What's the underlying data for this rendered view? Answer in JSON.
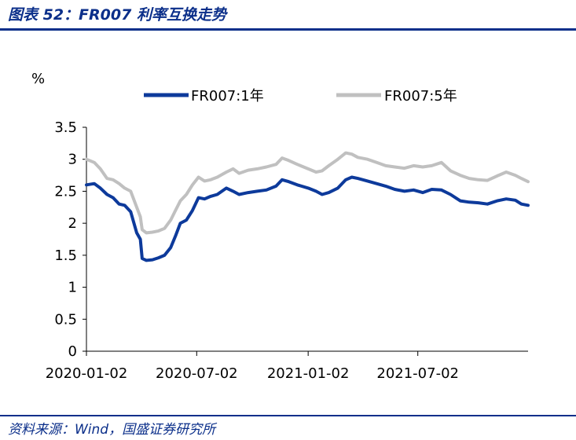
{
  "figure": {
    "title": "图表 52：FR007 利率互换走势",
    "source": "资料来源：Wind，国盛证券研究所"
  },
  "colors": {
    "accent": "#0b2f8a",
    "series_1y": "#0d3a9b",
    "series_5y": "#c0c0c0"
  },
  "chart_data": {
    "type": "line",
    "unit_label": "%",
    "ylim": [
      0,
      3.5
    ],
    "yticks": [
      "0",
      "0.5",
      "1",
      "1.5",
      "2",
      "2.5",
      "3",
      "3.5"
    ],
    "xlim": [
      "2020-01-02",
      "2021-12-31"
    ],
    "xticks": [
      "2020-01-02",
      "2020-07-02",
      "2021-01-02",
      "2021-07-02"
    ],
    "grid": false,
    "legend_position": "top",
    "series": [
      {
        "name": "FR007:1年",
        "color": "#0d3a9b",
        "points": [
          [
            "2020-01-02",
            2.6
          ],
          [
            "2020-01-15",
            2.62
          ],
          [
            "2020-01-25",
            2.55
          ],
          [
            "2020-02-05",
            2.45
          ],
          [
            "2020-02-15",
            2.4
          ],
          [
            "2020-02-25",
            2.3
          ],
          [
            "2020-03-05",
            2.28
          ],
          [
            "2020-03-15",
            2.18
          ],
          [
            "2020-03-25",
            1.85
          ],
          [
            "2020-03-31",
            1.75
          ],
          [
            "2020-04-03",
            1.45
          ],
          [
            "2020-04-10",
            1.42
          ],
          [
            "2020-04-20",
            1.43
          ],
          [
            "2020-04-30",
            1.46
          ],
          [
            "2020-05-10",
            1.5
          ],
          [
            "2020-05-20",
            1.62
          ],
          [
            "2020-05-28",
            1.8
          ],
          [
            "2020-06-05",
            2.0
          ],
          [
            "2020-06-15",
            2.05
          ],
          [
            "2020-06-25",
            2.2
          ],
          [
            "2020-07-05",
            2.4
          ],
          [
            "2020-07-15",
            2.38
          ],
          [
            "2020-07-25",
            2.42
          ],
          [
            "2020-08-05",
            2.45
          ],
          [
            "2020-08-20",
            2.55
          ],
          [
            "2020-08-31",
            2.5
          ],
          [
            "2020-09-10",
            2.45
          ],
          [
            "2020-09-25",
            2.48
          ],
          [
            "2020-10-10",
            2.5
          ],
          [
            "2020-10-25",
            2.52
          ],
          [
            "2020-11-10",
            2.58
          ],
          [
            "2020-11-20",
            2.68
          ],
          [
            "2020-12-01",
            2.65
          ],
          [
            "2020-12-15",
            2.6
          ],
          [
            "2021-01-02",
            2.55
          ],
          [
            "2021-01-15",
            2.5
          ],
          [
            "2021-01-25",
            2.45
          ],
          [
            "2021-02-05",
            2.48
          ],
          [
            "2021-02-20",
            2.55
          ],
          [
            "2021-03-05",
            2.68
          ],
          [
            "2021-03-15",
            2.72
          ],
          [
            "2021-03-25",
            2.7
          ],
          [
            "2021-04-10",
            2.66
          ],
          [
            "2021-04-25",
            2.62
          ],
          [
            "2021-05-10",
            2.58
          ],
          [
            "2021-05-25",
            2.53
          ],
          [
            "2021-06-10",
            2.5
          ],
          [
            "2021-06-25",
            2.52
          ],
          [
            "2021-07-10",
            2.48
          ],
          [
            "2021-07-25",
            2.53
          ],
          [
            "2021-08-10",
            2.52
          ],
          [
            "2021-08-25",
            2.45
          ],
          [
            "2021-09-10",
            2.35
          ],
          [
            "2021-09-25",
            2.33
          ],
          [
            "2021-10-10",
            2.32
          ],
          [
            "2021-10-25",
            2.3
          ],
          [
            "2021-11-10",
            2.35
          ],
          [
            "2021-11-25",
            2.38
          ],
          [
            "2021-12-10",
            2.36
          ],
          [
            "2021-12-20",
            2.3
          ],
          [
            "2021-12-31",
            2.28
          ]
        ]
      },
      {
        "name": "FR007:5年",
        "color": "#c0c0c0",
        "points": [
          [
            "2020-01-02",
            3.0
          ],
          [
            "2020-01-15",
            2.95
          ],
          [
            "2020-01-25",
            2.85
          ],
          [
            "2020-02-05",
            2.7
          ],
          [
            "2020-02-15",
            2.68
          ],
          [
            "2020-02-25",
            2.62
          ],
          [
            "2020-03-05",
            2.55
          ],
          [
            "2020-03-15",
            2.5
          ],
          [
            "2020-03-25",
            2.25
          ],
          [
            "2020-03-31",
            2.1
          ],
          [
            "2020-04-03",
            1.9
          ],
          [
            "2020-04-10",
            1.85
          ],
          [
            "2020-04-20",
            1.86
          ],
          [
            "2020-04-30",
            1.88
          ],
          [
            "2020-05-10",
            1.92
          ],
          [
            "2020-05-20",
            2.05
          ],
          [
            "2020-05-28",
            2.2
          ],
          [
            "2020-06-05",
            2.35
          ],
          [
            "2020-06-15",
            2.45
          ],
          [
            "2020-06-25",
            2.6
          ],
          [
            "2020-07-05",
            2.72
          ],
          [
            "2020-07-15",
            2.66
          ],
          [
            "2020-07-25",
            2.68
          ],
          [
            "2020-08-05",
            2.72
          ],
          [
            "2020-08-20",
            2.8
          ],
          [
            "2020-08-31",
            2.85
          ],
          [
            "2020-09-10",
            2.78
          ],
          [
            "2020-09-25",
            2.83
          ],
          [
            "2020-10-10",
            2.85
          ],
          [
            "2020-10-25",
            2.88
          ],
          [
            "2020-11-10",
            2.92
          ],
          [
            "2020-11-20",
            3.02
          ],
          [
            "2020-12-01",
            2.98
          ],
          [
            "2020-12-15",
            2.92
          ],
          [
            "2021-01-02",
            2.85
          ],
          [
            "2021-01-15",
            2.8
          ],
          [
            "2021-01-25",
            2.82
          ],
          [
            "2021-02-05",
            2.9
          ],
          [
            "2021-02-20",
            3.0
          ],
          [
            "2021-03-05",
            3.1
          ],
          [
            "2021-03-15",
            3.08
          ],
          [
            "2021-03-25",
            3.03
          ],
          [
            "2021-04-10",
            3.0
          ],
          [
            "2021-04-25",
            2.95
          ],
          [
            "2021-05-10",
            2.9
          ],
          [
            "2021-05-25",
            2.88
          ],
          [
            "2021-06-10",
            2.86
          ],
          [
            "2021-06-25",
            2.9
          ],
          [
            "2021-07-10",
            2.88
          ],
          [
            "2021-07-25",
            2.9
          ],
          [
            "2021-08-10",
            2.95
          ],
          [
            "2021-08-25",
            2.82
          ],
          [
            "2021-09-10",
            2.75
          ],
          [
            "2021-09-25",
            2.7
          ],
          [
            "2021-10-10",
            2.68
          ],
          [
            "2021-10-25",
            2.67
          ],
          [
            "2021-11-10",
            2.74
          ],
          [
            "2021-11-25",
            2.8
          ],
          [
            "2021-12-10",
            2.75
          ],
          [
            "2021-12-20",
            2.7
          ],
          [
            "2021-12-31",
            2.65
          ]
        ]
      }
    ]
  }
}
